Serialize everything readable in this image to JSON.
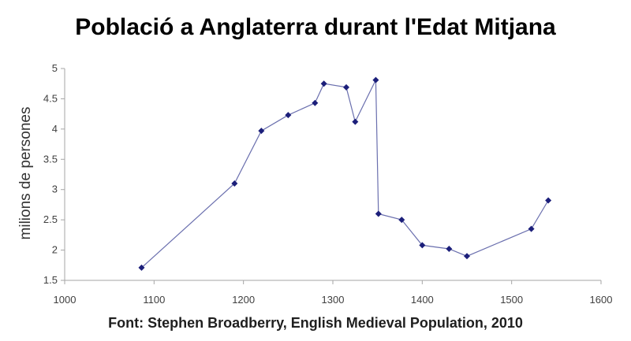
{
  "title": "Població a Anglaterra durant l'Edat Mitjana",
  "source": "Font: Stephen Broadberry, English Medieval Population, 2010",
  "colors": {
    "series": "#1c1f7a",
    "axis": "#a6a6a6",
    "text": "#404040"
  },
  "chart_data": {
    "type": "line",
    "title": "Població a Anglaterra durant l'Edat Mitjana",
    "xlabel": "",
    "ylabel": "milions de persones",
    "xlim": [
      1000,
      1600
    ],
    "ylim": [
      1.5,
      5
    ],
    "x_ticks": [
      1000,
      1100,
      1200,
      1300,
      1400,
      1500,
      1600
    ],
    "y_ticks": [
      1.5,
      2,
      2.5,
      3,
      3.5,
      4,
      4.5,
      5
    ],
    "x_tick_labels": [
      "1000",
      "1100",
      "1200",
      "1300",
      "1400",
      "1500",
      "1600"
    ],
    "y_tick_labels": [
      "1.5",
      "2",
      "2.5",
      "3",
      "3.5",
      "4",
      "4.5",
      "5"
    ],
    "grid": false,
    "legend": "none",
    "series": [
      {
        "x": [
          1086,
          1190,
          1220,
          1250,
          1280,
          1290,
          1315,
          1325,
          1348,
          1351,
          1377,
          1400,
          1430,
          1450,
          1522,
          1541
        ],
        "values": [
          1.71,
          3.1,
          3.97,
          4.23,
          4.43,
          4.75,
          4.69,
          4.12,
          4.81,
          2.6,
          2.5,
          2.08,
          2.02,
          1.9,
          2.35,
          2.82
        ]
      }
    ]
  }
}
